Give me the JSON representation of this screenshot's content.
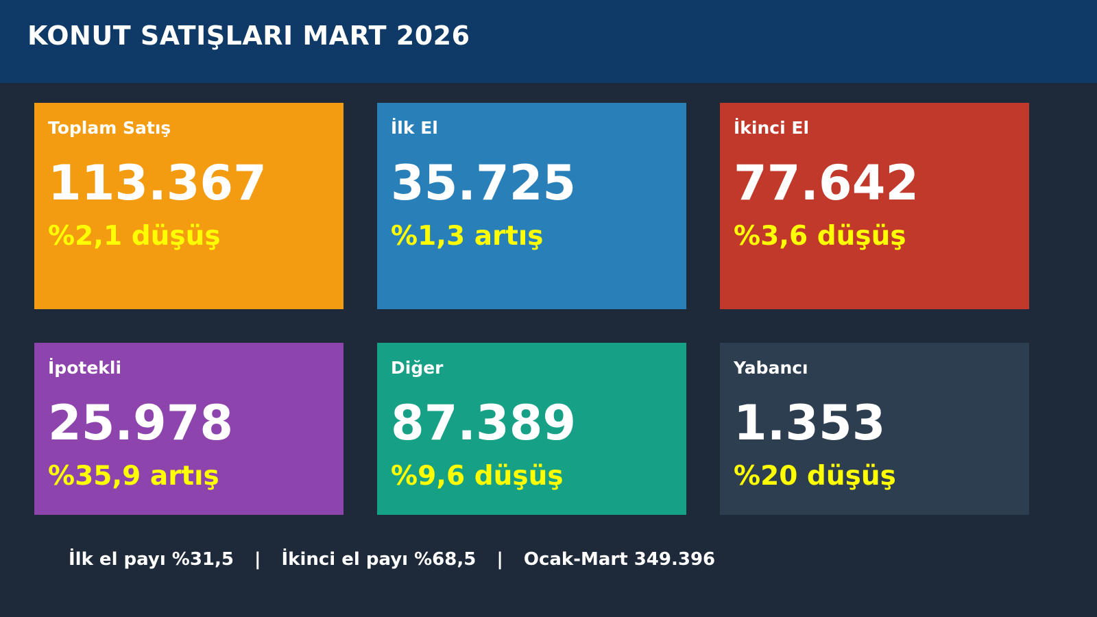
{
  "header": {
    "title": "KONUT SATIŞLARI MART 2026"
  },
  "colors": {
    "background": "#1e2a3a",
    "header": "#0f3966",
    "change_text": "#ffff00"
  },
  "cards": [
    {
      "label": "Toplam Satış",
      "value": "113.367",
      "change": "%2,1 düşüş",
      "color": "#f39c12"
    },
    {
      "label": "İlk El",
      "value": "35.725",
      "change": "%1,3 artış",
      "color": "#2980b9"
    },
    {
      "label": "İkinci El",
      "value": "77.642",
      "change": "%3,6 düşüş",
      "color": "#c0392b"
    },
    {
      "label": "İpotekli",
      "value": "25.978",
      "change": "%35,9 artış",
      "color": "#8e44ad"
    },
    {
      "label": "Diğer",
      "value": "87.389",
      "change": "%9,6 düşüş",
      "color": "#16a085"
    },
    {
      "label": "Yabancı",
      "value": "1.353",
      "change": "%20 düşüş",
      "color": "#2c3e50"
    }
  ],
  "footer": {
    "first_hand_share": "İlk el payı %31,5",
    "second_hand_share": "İkinci el payı %68,5",
    "ytd_total": "Ocak-Mart 349.396",
    "separator": "|"
  }
}
